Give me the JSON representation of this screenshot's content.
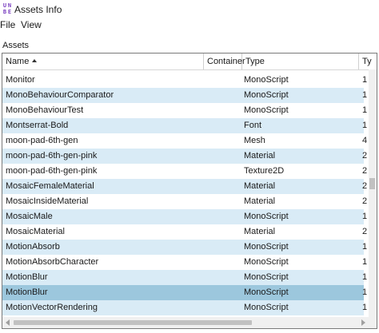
{
  "window": {
    "title": "Assets Info",
    "icon": "unity-logo-icon"
  },
  "menu": [
    {
      "label": "File"
    },
    {
      "label": "View"
    }
  ],
  "group_label": "Assets",
  "grid": {
    "columns": {
      "name": "Name",
      "container": "Container",
      "type": "Type",
      "ty": "Ty"
    },
    "sort": {
      "column": "name",
      "direction": "ascending"
    },
    "rows": [
      {
        "name": "Monitor",
        "container": "",
        "type": "MonoScript",
        "ty": "1"
      },
      {
        "name": "MonoBehaviourComparator",
        "container": "",
        "type": "MonoScript",
        "ty": "1"
      },
      {
        "name": "MonoBehaviourTest",
        "container": "",
        "type": "MonoScript",
        "ty": "1"
      },
      {
        "name": "Montserrat-Bold",
        "container": "",
        "type": "Font",
        "ty": "1"
      },
      {
        "name": "moon-pad-6th-gen",
        "container": "",
        "type": "Mesh",
        "ty": "4"
      },
      {
        "name": "moon-pad-6th-gen-pink",
        "container": "",
        "type": "Material",
        "ty": "2"
      },
      {
        "name": "moon-pad-6th-gen-pink",
        "container": "",
        "type": "Texture2D",
        "ty": "2"
      },
      {
        "name": "MosaicFemaleMaterial",
        "container": "",
        "type": "Material",
        "ty": "2"
      },
      {
        "name": "MosaicInsideMaterial",
        "container": "",
        "type": "Material",
        "ty": "2"
      },
      {
        "name": "MosaicMale",
        "container": "",
        "type": "MonoScript",
        "ty": "1"
      },
      {
        "name": "MosaicMaterial",
        "container": "",
        "type": "Material",
        "ty": "2"
      },
      {
        "name": "MotionAbsorb",
        "container": "",
        "type": "MonoScript",
        "ty": "1"
      },
      {
        "name": "MotionAbsorbCharacter",
        "container": "",
        "type": "MonoScript",
        "ty": "1"
      },
      {
        "name": "MotionBlur",
        "container": "",
        "type": "MonoScript",
        "ty": "1"
      },
      {
        "name": "MotionBlur",
        "container": "",
        "type": "MonoScript",
        "ty": "1",
        "selected": true
      },
      {
        "name": "MotionVectorRendering",
        "container": "",
        "type": "MonoScript",
        "ty": "1"
      }
    ]
  },
  "colors": {
    "row_alt": "#d9ebf6",
    "row_selected": "#9cc7dd",
    "icon": "#7a3fc0"
  }
}
